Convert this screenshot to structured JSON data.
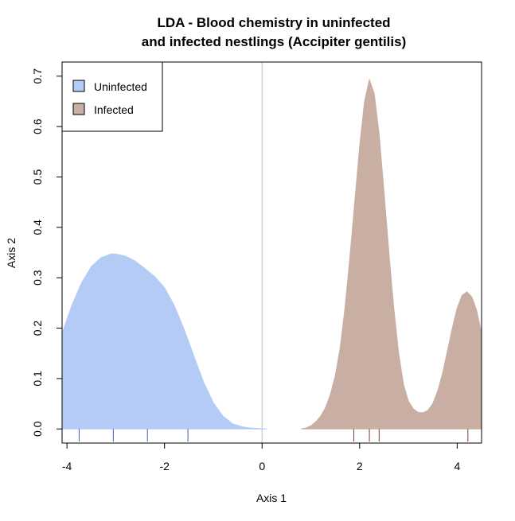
{
  "chart_data": {
    "type": "area",
    "title_lines": [
      "LDA - Blood chemistry in uninfected",
      "and infected nestlings (Accipiter gentilis)"
    ],
    "xlabel": "Axis 1",
    "ylabel": "Axis 2",
    "xlim": [
      -4.1,
      4.5
    ],
    "ylim": [
      -0.028,
      0.728
    ],
    "x_ticks": [
      -4,
      -2,
      0,
      2,
      4
    ],
    "x_tick_labels": [
      "-4",
      "-2",
      "0",
      "2",
      "4"
    ],
    "y_ticks": [
      0.0,
      0.1,
      0.2,
      0.3,
      0.4,
      0.5,
      0.6,
      0.7
    ],
    "y_tick_labels": [
      "0.0",
      "0.1",
      "0.2",
      "0.3",
      "0.4",
      "0.5",
      "0.6",
      "0.7"
    ],
    "vertical_reference_line_x": 0,
    "legend_position": "top-left",
    "series": [
      {
        "name": "Uninfected",
        "color": "#b3cbf5",
        "rug_color": "#3f5fbf",
        "rug_x": [
          -3.75,
          -3.05,
          -2.35,
          -1.52
        ],
        "points": [
          [
            -4.1,
            0.19
          ],
          [
            -3.9,
            0.245
          ],
          [
            -3.7,
            0.29
          ],
          [
            -3.5,
            0.322
          ],
          [
            -3.3,
            0.34
          ],
          [
            -3.1,
            0.347
          ],
          [
            -3.0,
            0.347
          ],
          [
            -2.8,
            0.343
          ],
          [
            -2.6,
            0.333
          ],
          [
            -2.4,
            0.318
          ],
          [
            -2.2,
            0.302
          ],
          [
            -2.0,
            0.28
          ],
          [
            -1.8,
            0.245
          ],
          [
            -1.6,
            0.198
          ],
          [
            -1.4,
            0.145
          ],
          [
            -1.2,
            0.093
          ],
          [
            -1.0,
            0.052
          ],
          [
            -0.8,
            0.025
          ],
          [
            -0.6,
            0.01
          ],
          [
            -0.4,
            0.004
          ],
          [
            -0.2,
            0.0015
          ],
          [
            0.0,
            0.0005
          ],
          [
            0.1,
            0.0
          ]
        ]
      },
      {
        "name": "Infected",
        "color": "#c9aea3",
        "rug_color": "#8b3a2a",
        "rug_x": [
          1.88,
          2.2,
          2.4,
          4.22
        ],
        "points": [
          [
            0.8,
            0.0
          ],
          [
            0.9,
            0.002
          ],
          [
            1.0,
            0.006
          ],
          [
            1.1,
            0.014
          ],
          [
            1.2,
            0.025
          ],
          [
            1.3,
            0.042
          ],
          [
            1.4,
            0.068
          ],
          [
            1.5,
            0.105
          ],
          [
            1.6,
            0.16
          ],
          [
            1.7,
            0.24
          ],
          [
            1.8,
            0.34
          ],
          [
            1.9,
            0.45
          ],
          [
            2.0,
            0.56
          ],
          [
            2.1,
            0.65
          ],
          [
            2.2,
            0.693
          ],
          [
            2.3,
            0.665
          ],
          [
            2.4,
            0.585
          ],
          [
            2.5,
            0.47
          ],
          [
            2.6,
            0.35
          ],
          [
            2.7,
            0.24
          ],
          [
            2.8,
            0.15
          ],
          [
            2.9,
            0.088
          ],
          [
            3.0,
            0.055
          ],
          [
            3.1,
            0.04
          ],
          [
            3.2,
            0.033
          ],
          [
            3.3,
            0.032
          ],
          [
            3.4,
            0.037
          ],
          [
            3.5,
            0.05
          ],
          [
            3.6,
            0.075
          ],
          [
            3.7,
            0.11
          ],
          [
            3.8,
            0.155
          ],
          [
            3.9,
            0.2
          ],
          [
            4.0,
            0.24
          ],
          [
            4.1,
            0.265
          ],
          [
            4.2,
            0.272
          ],
          [
            4.3,
            0.262
          ],
          [
            4.4,
            0.235
          ],
          [
            4.5,
            0.19
          ]
        ]
      }
    ]
  }
}
